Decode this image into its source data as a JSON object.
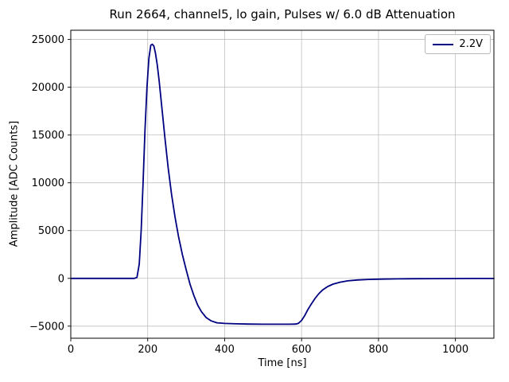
{
  "chart_data": {
    "type": "line",
    "title": "Run 2664, channel5, lo gain, Pulses w/ 6.0 dB Attenuation",
    "xlabel": "Time [ns]",
    "ylabel": "Amplitude [ADC Counts]",
    "xlim": [
      0,
      1100
    ],
    "ylim": [
      -6265,
      25965
    ],
    "xticks": [
      0,
      200,
      400,
      600,
      800,
      1000
    ],
    "yticks": [
      -5000,
      0,
      5000,
      10000,
      15000,
      20000,
      25000
    ],
    "grid": true,
    "grid_color": "#bfbfbf",
    "legend_position": "upper right",
    "series": [
      {
        "name": "2.2V",
        "color": "#000080",
        "x": [
          0,
          50,
          100,
          150,
          165,
          172,
          178,
          183,
          188,
          193,
          198,
          203,
          208,
          212,
          216,
          220,
          225,
          230,
          237,
          245,
          253,
          262,
          271,
          280,
          290,
          300,
          310,
          320,
          330,
          340,
          352,
          365,
          380,
          400,
          430,
          460,
          500,
          540,
          570,
          585,
          592,
          600,
          608,
          616,
          625,
          635,
          645,
          655,
          668,
          682,
          700,
          720,
          745,
          775,
          810,
          850,
          900,
          950,
          1000,
          1050,
          1100
        ],
        "y": [
          0,
          0,
          0,
          0,
          0,
          100,
          1500,
          5000,
          10000,
          15500,
          20000,
          23000,
          24400,
          24500,
          24300,
          23600,
          22300,
          20600,
          17800,
          14600,
          11600,
          8800,
          6400,
          4400,
          2500,
          900,
          -600,
          -1800,
          -2800,
          -3500,
          -4100,
          -4450,
          -4650,
          -4720,
          -4760,
          -4780,
          -4800,
          -4800,
          -4800,
          -4780,
          -4700,
          -4400,
          -3900,
          -3300,
          -2700,
          -2100,
          -1600,
          -1200,
          -850,
          -600,
          -400,
          -260,
          -170,
          -110,
          -75,
          -50,
          -35,
          -25,
          -18,
          -12,
          -10
        ]
      }
    ]
  }
}
